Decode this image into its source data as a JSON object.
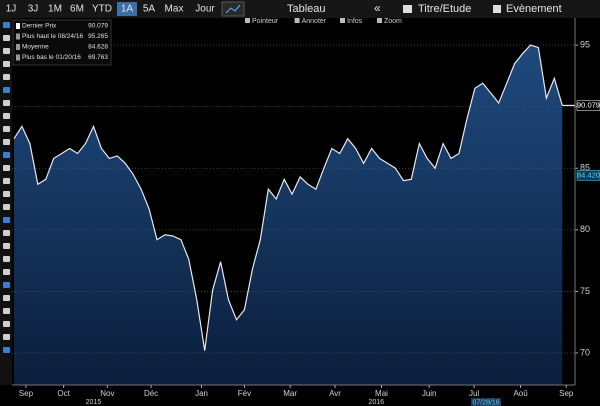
{
  "toolbar": {
    "buttons": [
      "1J",
      "3J",
      "1M",
      "6M",
      "YTD",
      "1A",
      "5A",
      "Max",
      "Jour"
    ],
    "active": "1A",
    "table": "Tableau",
    "study": "Titre/Etude",
    "event": "Evènement",
    "tools": [
      "Pointeur",
      "Annoter",
      "Infos",
      "Zoom"
    ]
  },
  "chart_data": {
    "type": "line",
    "legend": [
      {
        "name": "Dernier Prix",
        "value": 90.079
      },
      {
        "name": "Plus haut le 08/24/16",
        "value": 95.265
      },
      {
        "name": "Moyenne",
        "value": 84.628
      },
      {
        "name": "Plus bas le 01/20/16",
        "value": 69.763
      }
    ],
    "series": [
      {
        "name": "Dernier Prix",
        "color": "#e8e8ee",
        "values": [
          87.4,
          88.4,
          87.0,
          83.7,
          84.1,
          85.8,
          86.2,
          86.6,
          86.2,
          87.0,
          88.4,
          86.6,
          85.8,
          86.0,
          85.4,
          84.5,
          83.3,
          81.7,
          79.2,
          79.6,
          79.5,
          79.2,
          77.6,
          74.3,
          70.2,
          75.1,
          77.4,
          74.3,
          72.7,
          73.5,
          76.8,
          79.2,
          83.3,
          82.5,
          84.1,
          82.9,
          84.3,
          83.7,
          83.3,
          85.0,
          86.6,
          86.2,
          87.4,
          86.6,
          85.4,
          86.6,
          85.8,
          85.4,
          85.0,
          84.0,
          84.1,
          87.0,
          85.8,
          85.0,
          87.0,
          85.8,
          86.2,
          89.0,
          91.5,
          91.9,
          91.1,
          90.3,
          91.9,
          93.5,
          94.3,
          95.0,
          94.8,
          90.7,
          92.3,
          90.1
        ]
      }
    ],
    "xlim": [
      -0.25,
      70.6
    ],
    "xticks": [
      {
        "value": 1.5,
        "label": "Sep"
      },
      {
        "value": 6.25,
        "label": "Oct"
      },
      {
        "value": 11.75,
        "label": "Nov"
      },
      {
        "value": 17.25,
        "label": "Déc"
      },
      {
        "value": 23.6,
        "label": "Jan"
      },
      {
        "value": 29,
        "label": "Fév"
      },
      {
        "value": 34.75,
        "label": "Mar"
      },
      {
        "value": 40.4,
        "label": "Avr"
      },
      {
        "value": 46.25,
        "label": "Mai"
      },
      {
        "value": 52.25,
        "label": "Juin"
      },
      {
        "value": 57.9,
        "label": "Jul"
      },
      {
        "value": 63.75,
        "label": "Aoû"
      },
      {
        "value": 69.5,
        "label": "Sep"
      }
    ],
    "years": [
      {
        "value": 10,
        "label": "2015"
      },
      {
        "value": 45.6,
        "label": "2016"
      }
    ],
    "ylim": [
      67.4,
      97.2
    ],
    "yticks": [
      70,
      75,
      80,
      85,
      90,
      95
    ],
    "grid": true,
    "annotations": [
      {
        "label": "90.079",
        "value": 90.079,
        "color": "#ffffff"
      },
      {
        "label": "84.420",
        "value": 84.42,
        "color": "#5fd0ee"
      }
    ],
    "date_tag": {
      "label": "07/28/16",
      "value": 57.9
    }
  }
}
